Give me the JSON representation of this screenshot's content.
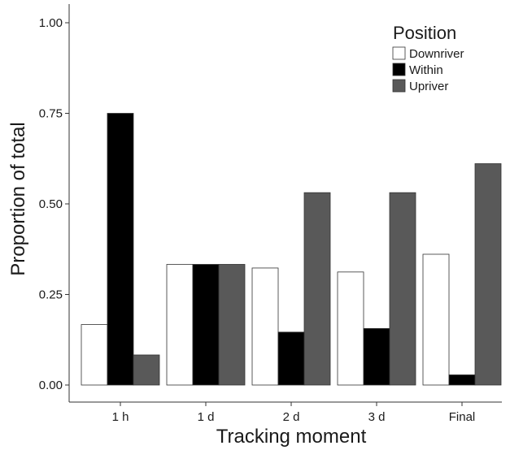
{
  "chart_data": {
    "type": "bar",
    "title": "",
    "xlabel": "Tracking moment",
    "ylabel": "Proportion of total",
    "categories": [
      "1 h",
      "1 d",
      "2 d",
      "3 d",
      "Final"
    ],
    "series": [
      {
        "name": "Downriver",
        "values": [
          0.167,
          0.333,
          0.323,
          0.312,
          0.361
        ],
        "color": "#ffffff"
      },
      {
        "name": "Within",
        "values": [
          0.75,
          0.333,
          0.146,
          0.156,
          0.028
        ],
        "color": "#000000"
      },
      {
        "name": "Upriver",
        "values": [
          0.083,
          0.333,
          0.531,
          0.531,
          0.611
        ],
        "color": "#595959"
      }
    ],
    "ylim": [
      0,
      1.05
    ],
    "yticks": [
      0.0,
      0.25,
      0.5,
      0.75,
      1.0
    ],
    "ytick_labels": [
      "0.00",
      "0.25",
      "0.50",
      "0.75",
      "1.00"
    ],
    "grid": false,
    "legend": {
      "title": "Position",
      "placement": "top-right"
    }
  }
}
